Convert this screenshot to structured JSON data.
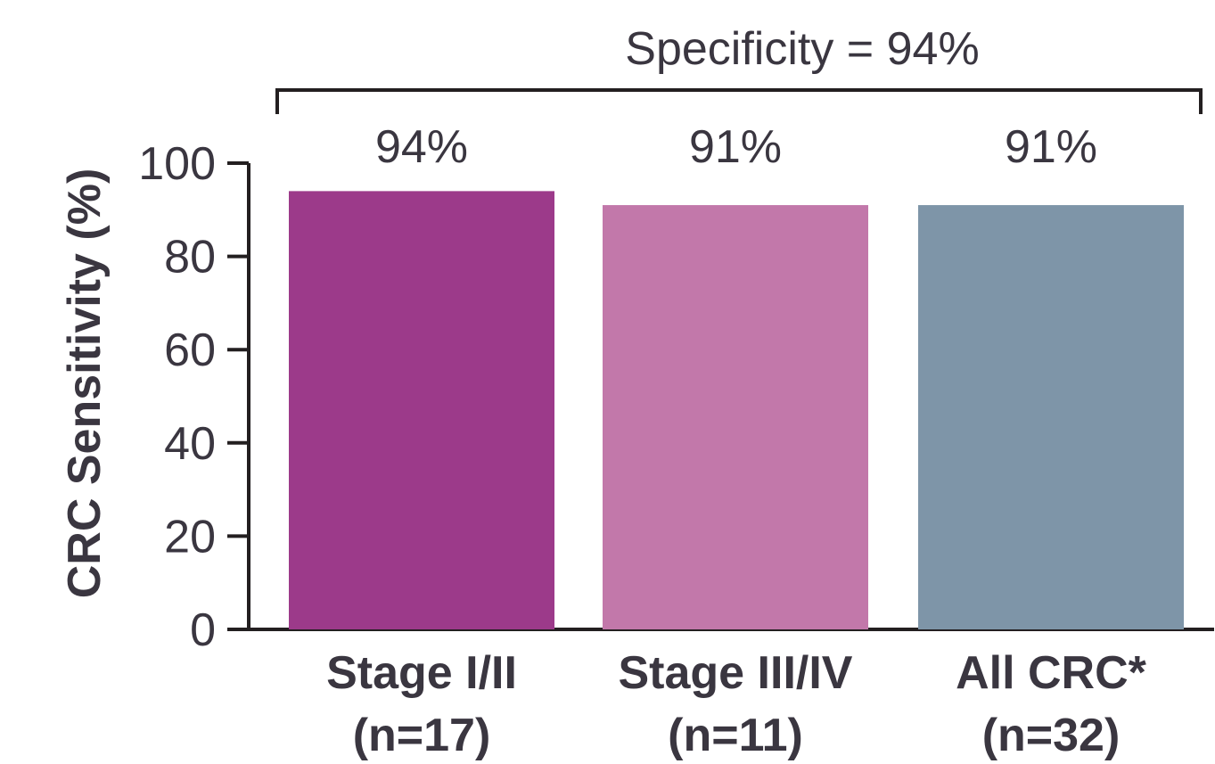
{
  "chart_data": {
    "type": "bar",
    "annotation": "Specificity = 94%",
    "ylabel": "CRC Sensitivity (%)",
    "xlabel": "",
    "ylim": [
      0,
      100
    ],
    "yticks": [
      0,
      20,
      40,
      60,
      80,
      100
    ],
    "grid": false,
    "categories": [
      {
        "label": "Stage I/II",
        "sublabel": "(n=17)"
      },
      {
        "label": "Stage III/IV",
        "sublabel": "(n=11)"
      },
      {
        "label": "All CRC*",
        "sublabel": "(n=32)"
      }
    ],
    "values": [
      94,
      91,
      91
    ],
    "value_labels": [
      "94%",
      "91%",
      "91%"
    ],
    "colors": [
      "#9c3a8a",
      "#c278aa",
      "#7e95a8"
    ]
  }
}
